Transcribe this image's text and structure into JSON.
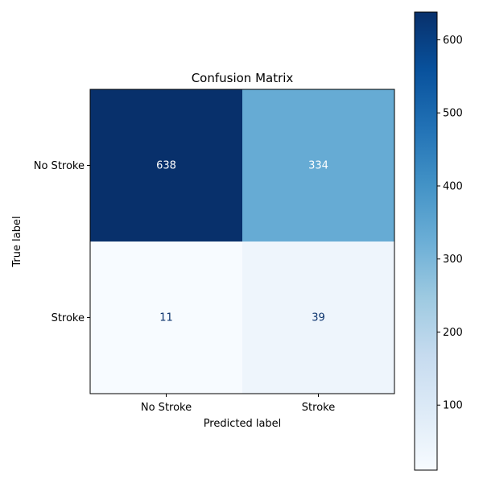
{
  "chart_data": {
    "type": "heatmap",
    "title": "Confusion Matrix",
    "xlabel": "Predicted label",
    "ylabel": "True label",
    "x_categories": [
      "No Stroke",
      "Stroke"
    ],
    "y_categories": [
      "No Stroke",
      "Stroke"
    ],
    "values": [
      [
        638,
        334
      ],
      [
        11,
        39
      ]
    ],
    "colormap": "Blues",
    "color_range": [
      11,
      638
    ],
    "colorbar_ticks": [
      100,
      200,
      300,
      400,
      500,
      600
    ],
    "grid": false,
    "colorbar_position": "right"
  }
}
